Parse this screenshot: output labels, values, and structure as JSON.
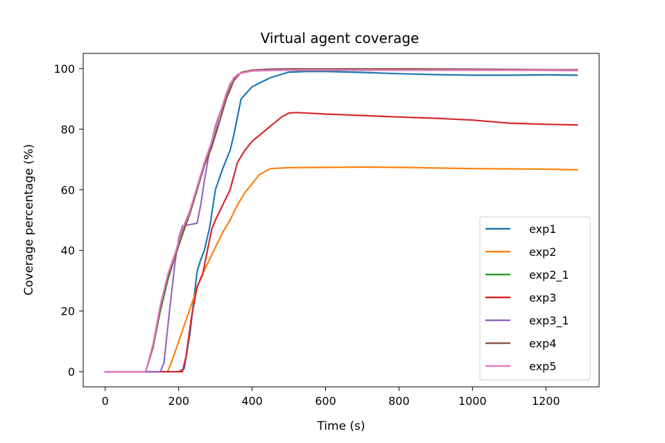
{
  "chart_data": {
    "type": "line",
    "title": "Virtual agent coverage",
    "xlabel": "Time (s)",
    "ylabel": "Coverage percentage (%)",
    "xlim": [
      -60,
      1345
    ],
    "ylim": [
      -5,
      105
    ],
    "xticks": [
      0,
      200,
      400,
      600,
      800,
      1000,
      1200
    ],
    "yticks": [
      0,
      20,
      40,
      60,
      80,
      100
    ],
    "grid": false,
    "legend_position": "bottom-right",
    "series": [
      {
        "name": "exp1",
        "color": "#1f77b4",
        "x": [
          0,
          200,
          215,
          230,
          250,
          260,
          270,
          285,
          300,
          320,
          340,
          350,
          370,
          400,
          450,
          500,
          550,
          600,
          700,
          800,
          900,
          1000,
          1100,
          1200,
          1285
        ],
        "y": [
          0,
          0,
          1,
          12,
          33,
          37,
          40,
          48,
          60,
          67,
          73,
          78,
          90,
          94,
          97,
          98.8,
          99,
          99,
          98.7,
          98.3,
          98,
          97.8,
          97.8,
          97.9,
          97.8
        ]
      },
      {
        "name": "exp2",
        "color": "#ff7f0e",
        "x": [
          0,
          170,
          180,
          200,
          220,
          240,
          260,
          280,
          300,
          320,
          340,
          360,
          380,
          400,
          420,
          450,
          500,
          600,
          700,
          800,
          900,
          1000,
          1100,
          1200,
          1285
        ],
        "y": [
          0,
          0,
          3,
          10,
          17,
          24,
          31,
          36,
          41,
          46,
          50,
          55,
          59,
          62,
          65,
          67,
          67.3,
          67.4,
          67.5,
          67.4,
          67.2,
          67,
          66.9,
          66.8,
          66.6
        ]
      },
      {
        "name": "exp2_1",
        "color": "#2ca02c",
        "x": [
          0,
          110,
          130,
          150,
          170,
          190,
          210,
          230,
          250,
          270,
          290,
          310,
          330,
          350,
          370,
          400,
          450,
          500,
          600,
          800,
          1000,
          1200,
          1285
        ],
        "y": [
          0,
          0,
          8,
          20,
          30,
          38,
          45,
          52,
          60,
          68,
          75,
          84,
          91,
          97,
          98.5,
          99.2,
          99.5,
          99.5,
          99.4,
          99.5,
          99.5,
          99.5,
          99.5
        ]
      },
      {
        "name": "exp3",
        "color": "#d62728",
        "x": [
          0,
          210,
          220,
          235,
          250,
          265,
          275,
          290,
          300,
          320,
          340,
          360,
          380,
          400,
          420,
          450,
          480,
          500,
          520,
          600,
          700,
          800,
          900,
          1000,
          1100,
          1200,
          1285
        ],
        "y": [
          0,
          0,
          5,
          18,
          28,
          32,
          38,
          47,
          50,
          55,
          60,
          69,
          73,
          76,
          78,
          81,
          84,
          85.3,
          85.5,
          85,
          84.5,
          84,
          83.6,
          83,
          82,
          81.6,
          81.4
        ]
      },
      {
        "name": "exp3_1",
        "color": "#9467bd",
        "x": [
          0,
          150,
          160,
          175,
          190,
          200,
          210,
          230,
          250,
          260,
          270,
          280,
          290,
          300,
          320,
          340,
          360,
          380,
          400,
          450,
          500,
          600,
          800,
          1000,
          1200,
          1285
        ],
        "y": [
          0,
          0,
          3,
          20,
          36,
          44,
          48,
          48.5,
          49,
          55,
          63,
          70,
          76,
          81,
          88,
          95,
          98,
          99,
          99.2,
          99.4,
          99.5,
          99.6,
          99.7,
          99.6,
          99.6,
          99.5
        ]
      },
      {
        "name": "exp4",
        "color": "#8c564b",
        "x": [
          0,
          110,
          130,
          150,
          170,
          190,
          210,
          230,
          250,
          270,
          290,
          310,
          330,
          350,
          370,
          400,
          450,
          500,
          600,
          800,
          1000,
          1200,
          1285
        ],
        "y": [
          0,
          0,
          8,
          21,
          31,
          38,
          46,
          52,
          60,
          68,
          74,
          82,
          90,
          96,
          98.7,
          99.5,
          99.8,
          99.9,
          99.9,
          99.9,
          99.8,
          99.6,
          99.6
        ]
      },
      {
        "name": "exp5",
        "color": "#e377c2",
        "x": [
          0,
          110,
          130,
          150,
          170,
          190,
          210,
          230,
          250,
          270,
          290,
          310,
          330,
          350,
          370,
          400,
          450,
          500,
          600,
          800,
          1000,
          1200,
          1285
        ],
        "y": [
          0,
          0,
          9,
          22,
          32,
          39,
          47,
          53,
          61,
          69,
          76,
          84,
          92,
          97,
          98.5,
          99.2,
          99.4,
          99.5,
          99.5,
          99.5,
          99.5,
          99.4,
          99.3
        ]
      }
    ]
  }
}
